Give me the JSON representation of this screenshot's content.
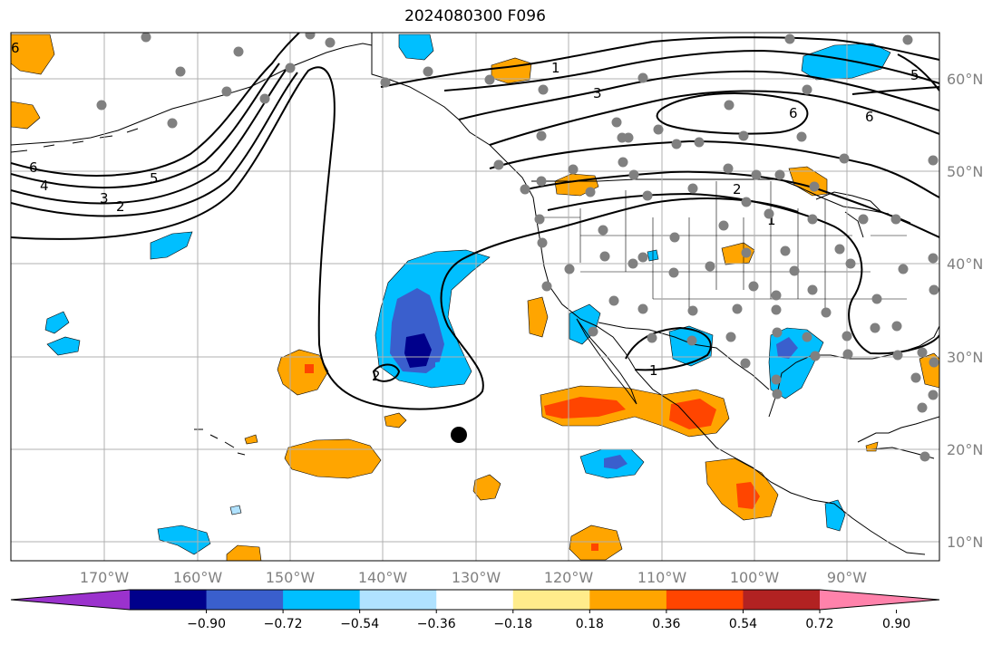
{
  "title": "2024080300 F096",
  "lon_labels": [
    "170°W",
    "160°W",
    "150°W",
    "140°W",
    "130°W",
    "120°W",
    "110°W",
    "100°W",
    "90°W"
  ],
  "lat_labels": [
    "60°N",
    "50°N",
    "40°N",
    "30°N",
    "20°N",
    "10°N"
  ],
  "colorbar": {
    "tick_labels": [
      "−0.90",
      "−0.72",
      "−0.54",
      "−0.36",
      "−0.18",
      "0.18",
      "0.36",
      "0.54",
      "0.72",
      "0.90"
    ],
    "colors": [
      "#9b32cd",
      "#00008b",
      "#3a5fcd",
      "#00bfff",
      "#b0e2ff",
      "#ffffff",
      "#ffec8b",
      "#ffa500",
      "#ff4500",
      "#b22222",
      "#ff82ab"
    ]
  },
  "contour_labels": [
    "6",
    "4",
    "3",
    "2",
    "5",
    "2",
    "1",
    "3",
    "6",
    "6",
    "5",
    "2",
    "1",
    "1"
  ],
  "colors": {
    "land_fill": "#ffffff",
    "ocean_fill": "#ffffff",
    "contour": "#000000",
    "grid": "#b0b0b0",
    "station": "#808080",
    "marker": "#000000"
  }
}
